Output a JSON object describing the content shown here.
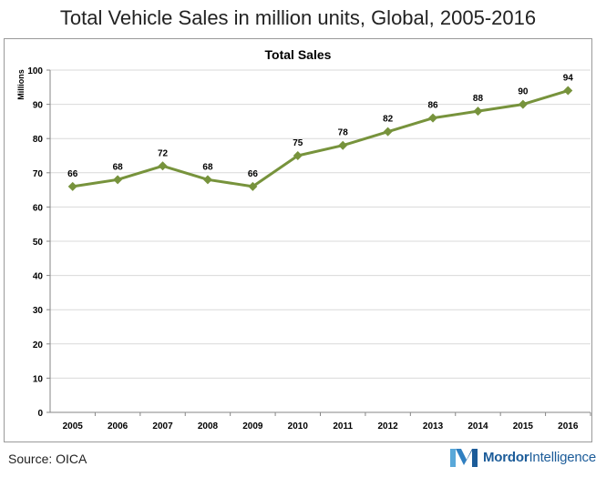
{
  "page": {
    "title": "Total Vehicle Sales in million units, Global, 2005-2016",
    "source": "Source: OICA",
    "brand": {
      "name_bold": "Mordor",
      "name_regular": "Intelligence",
      "logo_icon": "mordor-intelligence-logo-icon"
    }
  },
  "colors": {
    "line": "#77933c",
    "grid": "#d9d9d9",
    "axis": "#868686",
    "brand": "#1c5c99"
  },
  "chart_data": {
    "type": "line",
    "title": "Total Sales",
    "ylabel": "Millions",
    "xlabel": "",
    "categories": [
      "2005",
      "2006",
      "2007",
      "2008",
      "2009",
      "2010",
      "2011",
      "2012",
      "2013",
      "2014",
      "2015",
      "2016"
    ],
    "series": [
      {
        "values": [
          66,
          68,
          72,
          68,
          66,
          75,
          78,
          82,
          86,
          88,
          90,
          94
        ],
        "labels": [
          "66",
          "68",
          "72",
          "68",
          "66",
          "75",
          "78",
          "82",
          "86",
          "88",
          "90",
          "94"
        ],
        "marker": "diamond"
      }
    ],
    "ylim": [
      0,
      100
    ],
    "yticks": [
      0,
      10,
      20,
      30,
      40,
      50,
      60,
      70,
      80,
      90,
      100
    ],
    "grid": true,
    "legend": "none"
  }
}
